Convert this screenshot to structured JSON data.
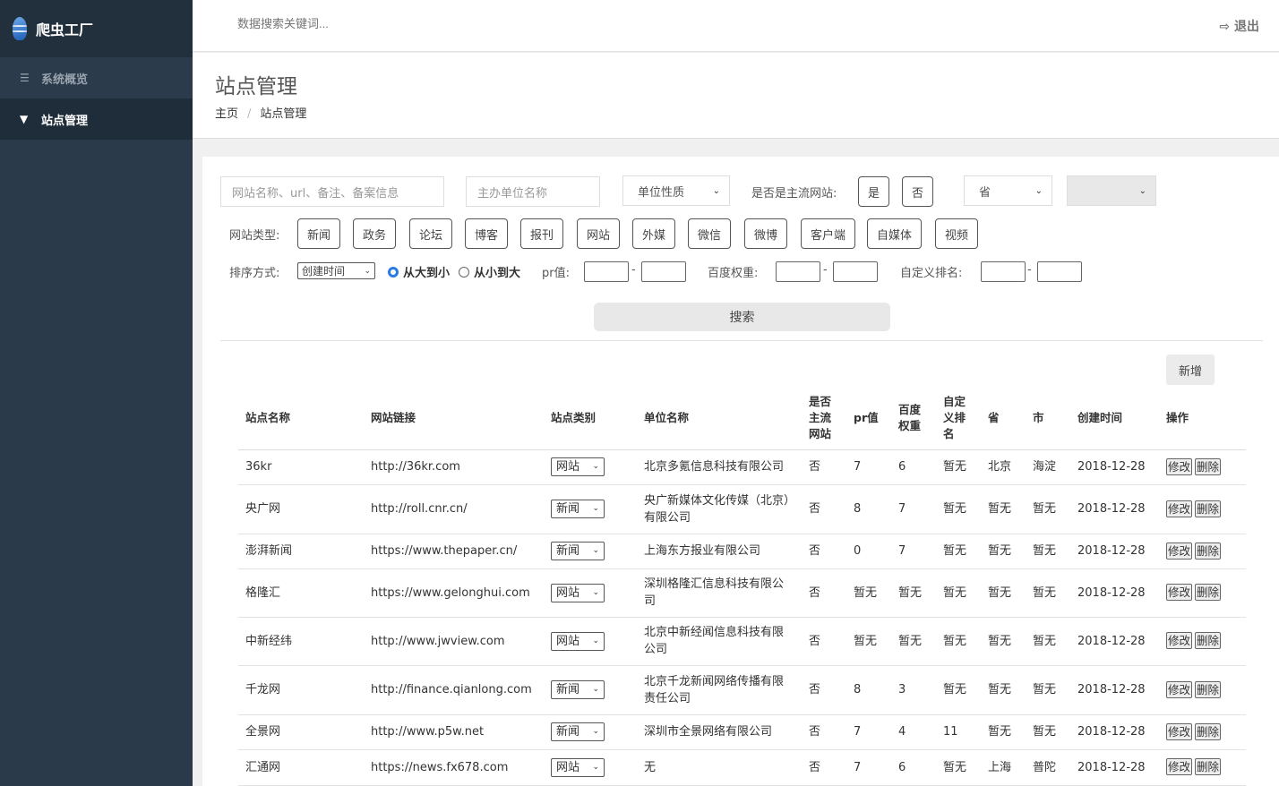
{
  "app": {
    "title": "爬虫工厂"
  },
  "sidebar": {
    "items": [
      {
        "label": "系统概览",
        "icon": "list-icon"
      },
      {
        "label": "站点管理",
        "icon": "filter-icon",
        "active": true
      }
    ]
  },
  "topbar": {
    "search_placeholder": "数据搜索关键词...",
    "logout": "退出"
  },
  "page": {
    "title": "站点管理",
    "breadcrumb": [
      "主页",
      "站点管理"
    ]
  },
  "filters": {
    "keyword_placeholder": "网站名称、url、备注、备案信息",
    "org_placeholder": "主办单位名称",
    "org_type": "单位性质",
    "mainstream_label": "是否是主流网站:",
    "yes": "是",
    "no": "否",
    "province": "省",
    "city": "",
    "type_label": "网站类型:",
    "types": [
      "新闻",
      "政务",
      "论坛",
      "博客",
      "报刊",
      "网站",
      "外媒",
      "微信",
      "微博",
      "客户端",
      "自媒体",
      "视频"
    ],
    "sort_label": "排序方式:",
    "sort_field": "创建时间",
    "sort_desc": "从大到小",
    "sort_asc": "从小到大",
    "sort_selected": "desc",
    "pr_label": "pr值:",
    "baidu_label": "百度权重:",
    "rank_label": "自定义排名:",
    "range_sep": "-",
    "search_button": "搜索",
    "add_button": "新增"
  },
  "table": {
    "headers": [
      "站点名称",
      "网站链接",
      "站点类别",
      "单位名称",
      "是否主流网站",
      "pr值",
      "百度权重",
      "自定义排名",
      "省",
      "市",
      "创建时间",
      "操作"
    ],
    "edit": "修改",
    "delete": "删除",
    "rows": [
      [
        "36kr",
        "http://36kr.com",
        "网站",
        "北京多氪信息科技有限公司",
        "否",
        "7",
        "6",
        "暂无",
        "北京",
        "海淀",
        "2018-12-28"
      ],
      [
        "央广网",
        "http://roll.cnr.cn/",
        "新闻",
        "央广新媒体文化传媒（北京）有限公司",
        "否",
        "8",
        "7",
        "暂无",
        "暂无",
        "暂无",
        "2018-12-28"
      ],
      [
        "澎湃新闻",
        "https://www.thepaper.cn/",
        "新闻",
        "上海东方报业有限公司",
        "否",
        "0",
        "7",
        "暂无",
        "暂无",
        "暂无",
        "2018-12-28"
      ],
      [
        "格隆汇",
        "https://www.gelonghui.com",
        "网站",
        "深圳格隆汇信息科技有限公司",
        "否",
        "暂无",
        "暂无",
        "暂无",
        "暂无",
        "暂无",
        "2018-12-28"
      ],
      [
        "中新经纬",
        "http://www.jwview.com",
        "网站",
        "北京中新经闻信息科技有限公司",
        "否",
        "暂无",
        "暂无",
        "暂无",
        "暂无",
        "暂无",
        "2018-12-28"
      ],
      [
        "千龙网",
        "http://finance.qianlong.com",
        "新闻",
        "北京千龙新闻网络传播有限责任公司",
        "否",
        "8",
        "3",
        "暂无",
        "暂无",
        "暂无",
        "2018-12-28"
      ],
      [
        "全景网",
        "http://www.p5w.net",
        "新闻",
        "深圳市全景网络有限公司",
        "否",
        "7",
        "4",
        "11",
        "暂无",
        "暂无",
        "2018-12-28"
      ],
      [
        "汇通网",
        "https://news.fx678.com",
        "网站",
        "无",
        "否",
        "7",
        "6",
        "暂无",
        "上海",
        "普陀",
        "2018-12-28"
      ]
    ]
  }
}
